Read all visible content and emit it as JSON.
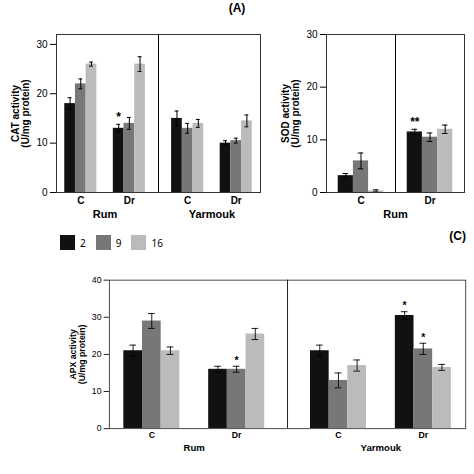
{
  "chart_data": [
    {
      "type": "bar",
      "title": "(A)",
      "ylabel": "CAT activity\n(U/mg protein)",
      "categories": [
        "C",
        "Dr",
        "C",
        "Dr"
      ],
      "group_labels": [
        "Rum",
        "Yarmouk"
      ],
      "series": [
        {
          "name": "2",
          "color": "#111111",
          "values": [
            18.0,
            13.0,
            15.0,
            10.0
          ],
          "errors": [
            1.2,
            0.8,
            1.5,
            0.5
          ]
        },
        {
          "name": "9",
          "color": "#777777",
          "values": [
            22.0,
            14.0,
            13.0,
            10.5
          ],
          "errors": [
            1.0,
            1.2,
            1.0,
            0.5
          ]
        },
        {
          "name": "16",
          "color": "#bbbbbb",
          "values": [
            26.0,
            26.0,
            14.0,
            14.5
          ],
          "errors": [
            0.4,
            1.5,
            0.8,
            1.2
          ]
        }
      ],
      "ylim": [
        0,
        32
      ],
      "yticks": [
        0,
        10,
        20,
        30
      ],
      "grid": false,
      "annotations": [
        {
          "text": "*",
          "series": "2",
          "category_index": 1
        }
      ]
    },
    {
      "type": "bar",
      "ylabel": "SOD activity\n(U/mg protein)",
      "categories": [
        "C",
        "Dr"
      ],
      "group_labels": [
        "Rum"
      ],
      "series": [
        {
          "name": "2",
          "color": "#111111",
          "values": [
            3.2,
            11.5
          ],
          "errors": [
            0.4,
            0.5
          ]
        },
        {
          "name": "9",
          "color": "#777777",
          "values": [
            6.0,
            10.5
          ],
          "errors": [
            1.5,
            0.8
          ]
        },
        {
          "name": "16",
          "color": "#bbbbbb",
          "values": [
            0.3,
            12.0
          ],
          "errors": [
            0.2,
            0.8
          ]
        }
      ],
      "ylim": [
        0,
        30
      ],
      "yticks": [
        0,
        10,
        20,
        30
      ],
      "grid": false,
      "annotations": [
        {
          "text": "**",
          "series": "2",
          "category_index": 1
        }
      ]
    },
    {
      "type": "bar",
      "title": "(C)",
      "ylabel": "APX activity\n(U/mg protein)",
      "categories": [
        "C",
        "Dr",
        "C",
        "Dr"
      ],
      "group_labels": [
        "Rum",
        "Yarmouk"
      ],
      "series": [
        {
          "name": "2",
          "color": "#111111",
          "values": [
            21.0,
            16.0,
            21.0,
            30.5
          ],
          "errors": [
            1.5,
            0.8,
            1.5,
            1.0
          ]
        },
        {
          "name": "9",
          "color": "#777777",
          "values": [
            29.0,
            16.0,
            13.0,
            21.5
          ],
          "errors": [
            2.0,
            0.8,
            2.0,
            1.5
          ]
        },
        {
          "name": "16",
          "color": "#bbbbbb",
          "values": [
            21.0,
            25.5,
            17.0,
            16.5
          ],
          "errors": [
            1.0,
            1.5,
            1.5,
            0.8
          ]
        }
      ],
      "ylim": [
        0,
        40
      ],
      "yticks": [
        0,
        10,
        20,
        30,
        40
      ],
      "grid": false,
      "legend": "upper left",
      "annotations": [
        {
          "text": "*",
          "series": "9",
          "category_index": 1
        },
        {
          "text": "*",
          "series": "2",
          "category_index": 3
        },
        {
          "text": "*",
          "series": "9",
          "category_index": 3
        }
      ]
    }
  ]
}
